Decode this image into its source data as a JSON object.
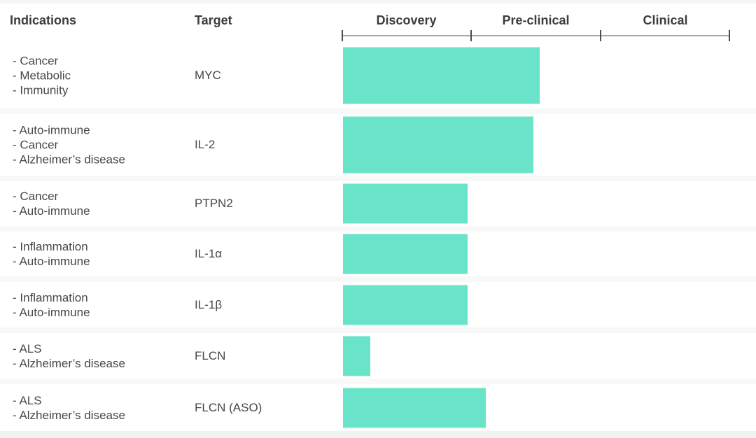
{
  "header": {
    "indications_label": "Indications",
    "target_label": "Target",
    "phases": [
      "Discovery",
      "Pre-clinical",
      "Clinical"
    ]
  },
  "rows": [
    {
      "indications": [
        "- Cancer",
        "- Metabolic",
        "- Immunity"
      ],
      "target": "MYC"
    },
    {
      "indications": [
        "- Auto-immune",
        "- Cancer",
        "- Alzheimer’s disease"
      ],
      "target": "IL-2"
    },
    {
      "indications": [
        "- Cancer",
        "- Auto-immune"
      ],
      "target": "PTPN2"
    },
    {
      "indications": [
        "- Inflammation",
        "- Auto-immune"
      ],
      "target": "IL-1α"
    },
    {
      "indications": [
        "- Inflammation",
        "- Auto-immune"
      ],
      "target": "IL-1β"
    },
    {
      "indications": [
        "- ALS",
        "- Alzheimer’s disease"
      ],
      "target": "FLCN"
    },
    {
      "indications": [
        "- ALS",
        "- Alzheimer’s disease"
      ],
      "target": "FLCN (ASO)"
    }
  ],
  "chart_data": {
    "type": "bar",
    "subtype": "horizontal-pipeline",
    "title": "",
    "phases": [
      "Discovery",
      "Pre-clinical",
      "Clinical"
    ],
    "axis_range_phases": [
      0,
      3
    ],
    "categories": [
      "MYC",
      "IL-2",
      "PTPN2",
      "IL-1α",
      "IL-1β",
      "FLCN",
      "FLCN (ASO)"
    ],
    "values": [
      1.52,
      1.47,
      0.96,
      0.96,
      0.96,
      0.21,
      1.1
    ],
    "value_unit": "phases completed (0-3 scale)",
    "stage_reached": [
      "Pre-clinical",
      "Pre-clinical",
      "Discovery",
      "Discovery",
      "Discovery",
      "Discovery",
      "Pre-clinical"
    ],
    "indications": [
      [
        "Cancer",
        "Metabolic",
        "Immunity"
      ],
      [
        "Auto-immune",
        "Cancer",
        "Alzheimer’s disease"
      ],
      [
        "Cancer",
        "Auto-immune"
      ],
      [
        "Inflammation",
        "Auto-immune"
      ],
      [
        "Inflammation",
        "Auto-immune"
      ],
      [
        "ALS",
        "Alzheimer’s disease"
      ],
      [
        "ALS",
        "Alzheimer’s disease"
      ]
    ],
    "legend": false,
    "grid": false,
    "bar_color": "#6AE4C8"
  },
  "colors": {
    "bar": "#6AE4C8",
    "axis_line": "#A8A8A8",
    "tick": "#4D4D4D",
    "heading_text": "#3C3C3C",
    "body_text": "#474747",
    "separator_stripe": "#F8F8F8"
  }
}
